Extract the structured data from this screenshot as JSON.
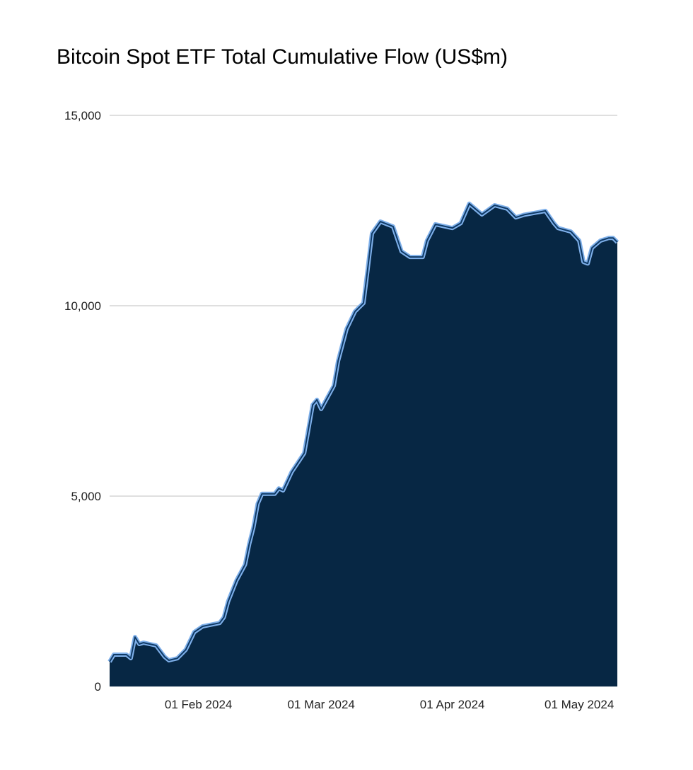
{
  "chart_data": {
    "type": "area",
    "title": "Bitcoin Spot ETF Total Cumulative Flow (US$m)",
    "xlabel": "",
    "ylabel": "",
    "ylim": [
      0,
      15000
    ],
    "xlim": [
      "2024-01-11",
      "2024-05-10"
    ],
    "y_ticks": [
      0,
      5000,
      10000,
      15000
    ],
    "y_tick_labels": [
      "0",
      "5,000",
      "10,000",
      "15,000"
    ],
    "x_ticks": [
      "2024-02-01",
      "2024-03-01",
      "2024-04-01",
      "2024-05-01"
    ],
    "x_tick_labels": [
      "01 Feb 2024",
      "01 Mar 2024",
      "01 Apr 2024",
      "01 May 2024"
    ],
    "grid": "horizontal",
    "legend": "none",
    "colors": {
      "fill": "#072744",
      "line": "#7fb0ea"
    },
    "points": [
      [
        "2024-01-11",
        650
      ],
      [
        "2024-01-12",
        836
      ],
      [
        "2024-01-15",
        836
      ],
      [
        "2024-01-16",
        743
      ],
      [
        "2024-01-17",
        1300
      ],
      [
        "2024-01-18",
        1115
      ],
      [
        "2024-01-19",
        1150
      ],
      [
        "2024-01-22",
        1078
      ],
      [
        "2024-01-24",
        780
      ],
      [
        "2024-01-25",
        688
      ],
      [
        "2024-01-27",
        740
      ],
      [
        "2024-01-29",
        966
      ],
      [
        "2024-01-31",
        1430
      ],
      [
        "2024-02-02",
        1580
      ],
      [
        "2024-02-06",
        1670
      ],
      [
        "2024-02-07",
        1820
      ],
      [
        "2024-02-08",
        2230
      ],
      [
        "2024-02-10",
        2790
      ],
      [
        "2024-02-12",
        3200
      ],
      [
        "2024-02-13",
        3750
      ],
      [
        "2024-02-14",
        4180
      ],
      [
        "2024-02-15",
        4800
      ],
      [
        "2024-02-16",
        5060
      ],
      [
        "2024-02-19",
        5060
      ],
      [
        "2024-02-20",
        5200
      ],
      [
        "2024-02-21",
        5150
      ],
      [
        "2024-02-23",
        5630
      ],
      [
        "2024-02-26",
        6130
      ],
      [
        "2024-02-28",
        7400
      ],
      [
        "2024-02-29",
        7530
      ],
      [
        "2024-03-01",
        7290
      ],
      [
        "2024-03-04",
        7900
      ],
      [
        "2024-03-05",
        8550
      ],
      [
        "2024-03-07",
        9390
      ],
      [
        "2024-03-09",
        9850
      ],
      [
        "2024-03-11",
        10070
      ],
      [
        "2024-03-12",
        10970
      ],
      [
        "2024-03-13",
        11900
      ],
      [
        "2024-03-15",
        12210
      ],
      [
        "2024-03-18",
        12080
      ],
      [
        "2024-03-20",
        11430
      ],
      [
        "2024-03-22",
        11280
      ],
      [
        "2024-03-25",
        11280
      ],
      [
        "2024-03-26",
        11710
      ],
      [
        "2024-03-28",
        12140
      ],
      [
        "2024-04-01",
        12040
      ],
      [
        "2024-04-03",
        12170
      ],
      [
        "2024-04-05",
        12680
      ],
      [
        "2024-04-08",
        12400
      ],
      [
        "2024-04-11",
        12640
      ],
      [
        "2024-04-14",
        12550
      ],
      [
        "2024-04-16",
        12320
      ],
      [
        "2024-04-18",
        12390
      ],
      [
        "2024-04-23",
        12490
      ],
      [
        "2024-04-25",
        12170
      ],
      [
        "2024-04-26",
        12040
      ],
      [
        "2024-04-29",
        11950
      ],
      [
        "2024-05-01",
        11710
      ],
      [
        "2024-05-02",
        11150
      ],
      [
        "2024-05-03",
        11110
      ],
      [
        "2024-05-04",
        11520
      ],
      [
        "2024-05-06",
        11710
      ],
      [
        "2024-05-08",
        11780
      ],
      [
        "2024-05-09",
        11780
      ],
      [
        "2024-05-10",
        11670
      ]
    ]
  }
}
